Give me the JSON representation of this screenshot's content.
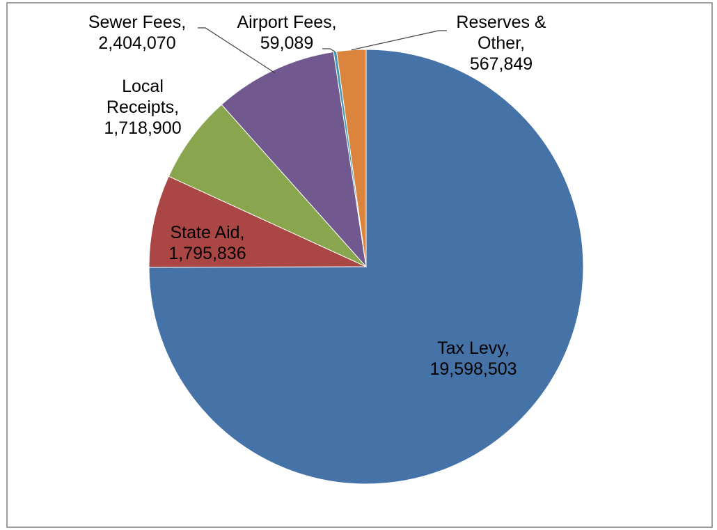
{
  "chart_data": {
    "type": "pie",
    "start_angle_deg": 0,
    "direction": "clockwise",
    "border_color": "#7f7f7f",
    "slices": [
      {
        "label_lines": [
          "Tax Levy,",
          "19,598,503"
        ],
        "name": "Tax Levy",
        "value": 19598503,
        "value_label": "19,598,503",
        "color": "#4572A7"
      },
      {
        "label_lines": [
          "State Aid,",
          "1,795,836"
        ],
        "name": "State Aid",
        "value": 1795836,
        "value_label": "1,795,836",
        "color": "#AA4643"
      },
      {
        "label_lines": [
          "Local",
          "Receipts,",
          "1,718,900"
        ],
        "name": "Local Receipts",
        "value": 1718900,
        "value_label": "1,718,900",
        "color": "#89A54E"
      },
      {
        "label_lines": [
          "Sewer Fees,",
          "2,404,070"
        ],
        "name": "Sewer Fees",
        "value": 2404070,
        "value_label": "2,404,070",
        "color": "#71588F"
      },
      {
        "label_lines": [
          "Airport Fees,",
          "59,089"
        ],
        "name": "Airport Fees",
        "value": 59089,
        "value_label": "59,089",
        "color": "#4198AF"
      },
      {
        "label_lines": [
          "Reserves &",
          "Other,",
          "567,849"
        ],
        "name": "Reserves & Other",
        "value": 567849,
        "value_label": "567,849",
        "color": "#DB843D"
      }
    ]
  }
}
